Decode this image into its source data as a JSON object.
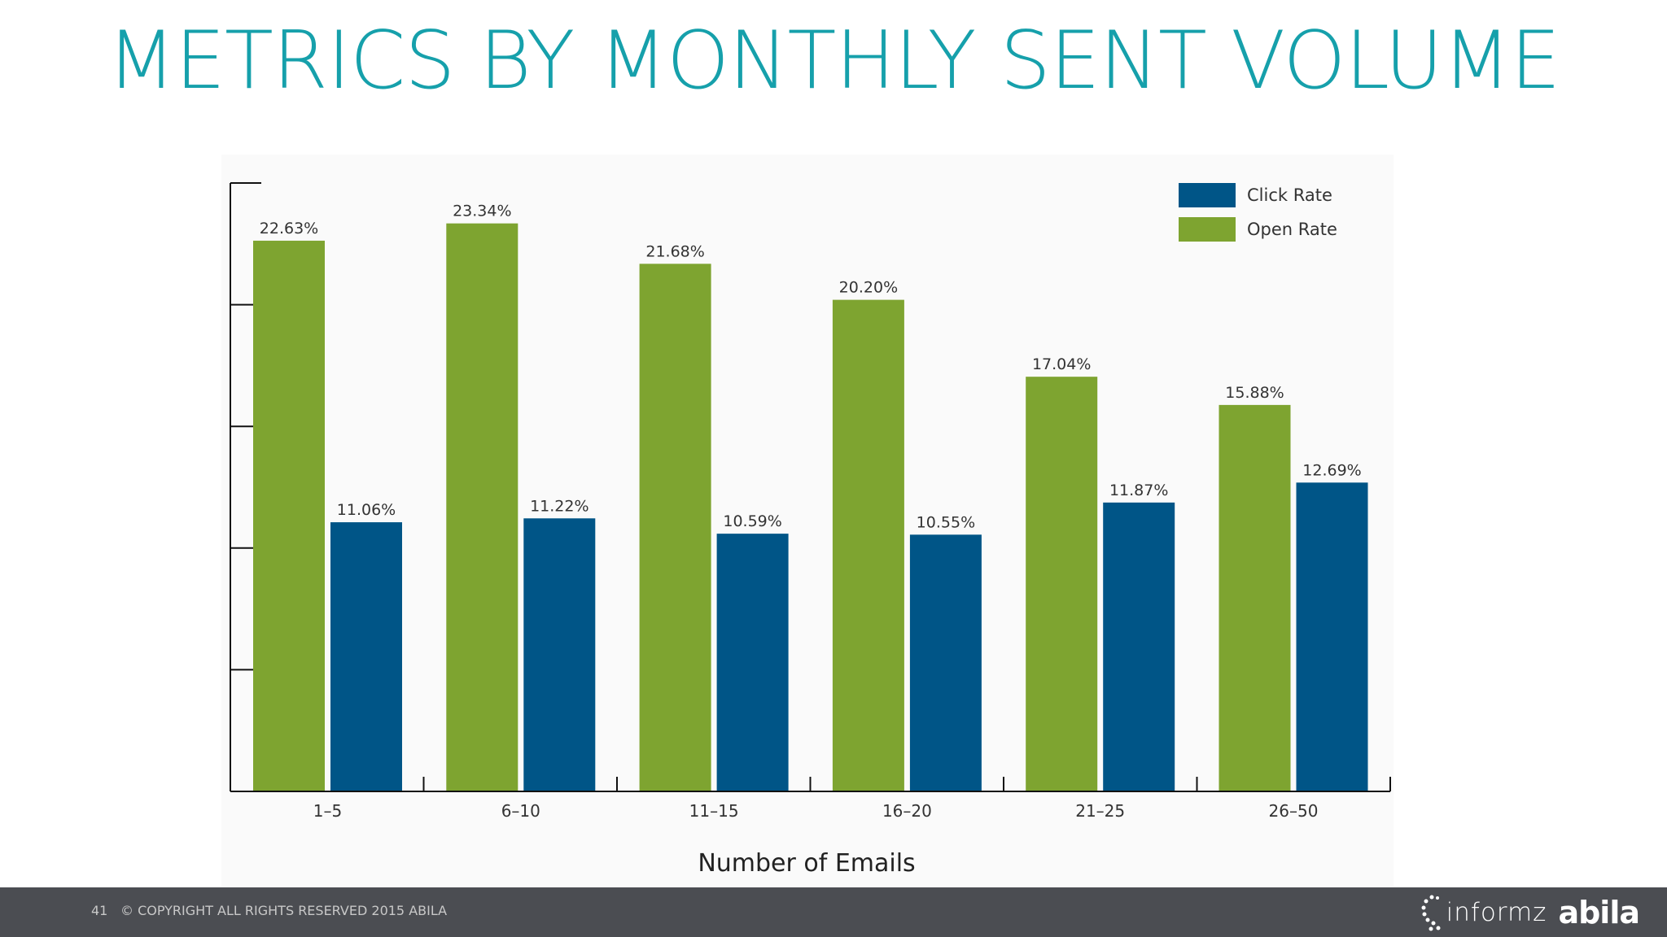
{
  "title": "METRICS BY MONTHLY SENT VOLUME",
  "chart_data": {
    "type": "bar",
    "xlabel": "Number of Emails",
    "ylabel": "",
    "ylim": [
      0,
      25
    ],
    "yticks": [
      0,
      5,
      10,
      15,
      20,
      25
    ],
    "categories": [
      "1–5",
      "6–10",
      "11–15",
      "16–20",
      "21–25",
      "26–50"
    ],
    "series": [
      {
        "name": "Open Rate",
        "color": "#7ea430",
        "values": [
          22.63,
          23.34,
          21.68,
          20.2,
          17.04,
          15.88
        ],
        "labels": [
          "22.63%",
          "23.34%",
          "21.68%",
          "20.20%",
          "17.04%",
          "15.88%"
        ]
      },
      {
        "name": "Click Rate",
        "color": "#005587",
        "values": [
          11.06,
          11.22,
          10.59,
          10.55,
          11.87,
          12.69
        ],
        "labels": [
          "11.06%",
          "11.22%",
          "10.59%",
          "10.55%",
          "11.87%",
          "12.69%"
        ]
      }
    ],
    "legend": {
      "position": "top-right",
      "order": [
        "Click Rate",
        "Open Rate"
      ]
    },
    "grid": false
  },
  "footer": {
    "slide_number": "41",
    "copyright": "© COPYRIGHT ALL RIGHTS RESERVED 2015 ABILA",
    "logo_informz": "informz",
    "logo_abila": "abila"
  }
}
